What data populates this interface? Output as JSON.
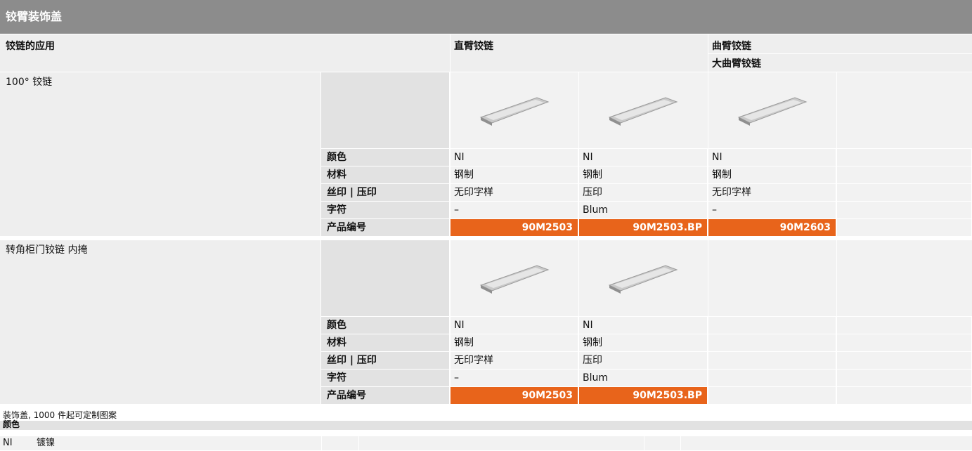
{
  "header": {
    "title": "铰臂装饰盖"
  },
  "table": {
    "head": {
      "application": "铰链的应用",
      "straight": "直臂铰链",
      "curved": "曲臂铰链",
      "large_curved": "大曲臂铰链"
    },
    "sections": [
      {
        "title": "100° 铰链",
        "rows": [
          {
            "label": "颜色",
            "values": [
              "NI",
              "NI",
              "NI"
            ]
          },
          {
            "label": "材料",
            "values": [
              "钢制",
              "钢制",
              "钢制"
            ]
          },
          {
            "label": "丝印 | 压印",
            "values": [
              "无印字样",
              "压印",
              "无印字样"
            ]
          },
          {
            "label": "字符",
            "values": [
              "–",
              "Blum",
              "–"
            ]
          },
          {
            "label": "产品编号",
            "values": [
              "90M2503",
              "90M2503.BP",
              "90M2603"
            ]
          }
        ]
      },
      {
        "title": "转角柜门铰链 内掩",
        "rows": [
          {
            "label": "颜色",
            "values": [
              "NI",
              "NI"
            ]
          },
          {
            "label": "材料",
            "values": [
              "钢制",
              "钢制"
            ]
          },
          {
            "label": "丝印 | 压印",
            "values": [
              "无印字样",
              "压印"
            ]
          },
          {
            "label": "字符",
            "values": [
              "–",
              "Blum"
            ]
          },
          {
            "label": "产品编号",
            "values": [
              "90M2503",
              "90M2503.BP"
            ]
          }
        ]
      }
    ]
  },
  "footer": {
    "note": "装饰盖, 1000 件起可定制图案",
    "color_heading": "颜色",
    "colors": [
      {
        "code": "NI",
        "name": "镀镍"
      }
    ]
  }
}
